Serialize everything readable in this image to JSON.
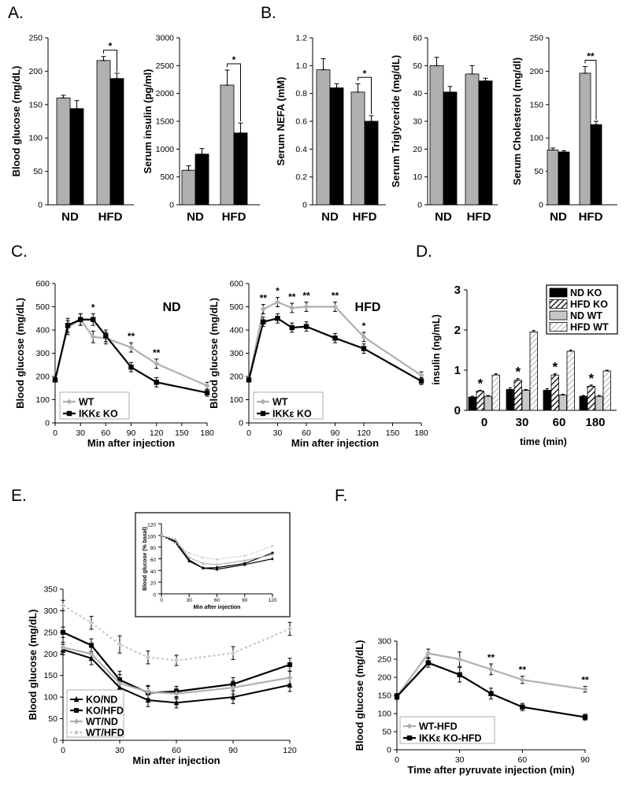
{
  "colors": {
    "wt": "#b0b0b0",
    "ko": "#000000",
    "wt_hfd_dotted": "#c4c4c4",
    "bar_edge": "#000000"
  },
  "panels": {
    "A": "A.",
    "B": "B.",
    "C": "C.",
    "D": "D.",
    "E": "E.",
    "F": "F."
  },
  "chart_data": [
    {
      "id": "A1",
      "type": "bar",
      "panel": "A",
      "categories": [
        "ND",
        "HFD"
      ],
      "series": [
        {
          "name": "WT",
          "values": [
            160,
            216
          ],
          "errors": [
            4,
            6
          ]
        },
        {
          "name": "IKKε KO",
          "values": [
            144,
            189
          ],
          "errors": [
            12,
            8
          ]
        }
      ],
      "ylabel": "Blood glucose (mg/dL)",
      "ylim": [
        0,
        250
      ],
      "yticks": [
        0,
        50,
        100,
        150,
        200,
        250
      ],
      "significance": [
        {
          "category": "HFD",
          "label": "*"
        }
      ]
    },
    {
      "id": "A2",
      "type": "bar",
      "panel": "A",
      "categories": [
        "ND",
        "HFD"
      ],
      "series": [
        {
          "name": "WT",
          "values": [
            620,
            2150
          ],
          "errors": [
            80,
            270
          ]
        },
        {
          "name": "IKKε KO",
          "values": [
            910,
            1290
          ],
          "errors": [
            100,
            180
          ]
        }
      ],
      "ylabel": "Serum insulin (pg/ml)",
      "ylim": [
        0,
        3000
      ],
      "yticks": [
        0,
        500,
        1000,
        1500,
        2000,
        2500,
        3000
      ],
      "significance": [
        {
          "category": "HFD",
          "label": "*"
        }
      ]
    },
    {
      "id": "B1",
      "type": "bar",
      "panel": "B",
      "categories": [
        "ND",
        "HFD"
      ],
      "series": [
        {
          "name": "WT",
          "values": [
            0.97,
            0.81
          ],
          "errors": [
            0.08,
            0.06
          ]
        },
        {
          "name": "IKKε KO",
          "values": [
            0.84,
            0.6
          ],
          "errors": [
            0.03,
            0.04
          ]
        }
      ],
      "ylabel": "Serum NEFA (mM)",
      "ylim": [
        0,
        1.2
      ],
      "yticks": [
        "0",
        "0.2",
        "0.4",
        "0.6",
        "0.8",
        "1.0",
        "1.2"
      ],
      "significance": [
        {
          "category": "HFD",
          "label": "*"
        }
      ]
    },
    {
      "id": "B2",
      "type": "bar",
      "panel": "B",
      "categories": [
        "ND",
        "HFD"
      ],
      "series": [
        {
          "name": "WT",
          "values": [
            50,
            47
          ],
          "errors": [
            3,
            3
          ]
        },
        {
          "name": "IKKε KO",
          "values": [
            40.5,
            44.5
          ],
          "errors": [
            2,
            1
          ]
        }
      ],
      "ylabel": "Serum Triglyceride (mg/dL)",
      "ylim": [
        0,
        60
      ],
      "yticks": [
        0,
        10,
        20,
        30,
        40,
        50,
        60
      ],
      "significance": []
    },
    {
      "id": "B3",
      "type": "bar",
      "panel": "B",
      "categories": [
        "ND",
        "HFD"
      ],
      "series": [
        {
          "name": "WT",
          "values": [
            82,
            197
          ],
          "errors": [
            3,
            10
          ]
        },
        {
          "name": "IKKε KO",
          "values": [
            79,
            120
          ],
          "errors": [
            2,
            5
          ]
        }
      ],
      "ylabel": "Serum Cholesterol (mg/dl)",
      "ylim": [
        0,
        250
      ],
      "yticks": [
        0,
        50,
        100,
        150,
        200,
        250
      ],
      "significance": [
        {
          "category": "HFD",
          "label": "**"
        }
      ]
    },
    {
      "id": "C1",
      "type": "line",
      "panel": "C",
      "title": "ND",
      "x": [
        0,
        15,
        30,
        45,
        60,
        90,
        120,
        180
      ],
      "series": [
        {
          "name": "WT",
          "values": [
            185,
            410,
            445,
            370,
            365,
            325,
            255,
            160
          ]
        },
        {
          "name": "IKKε KO",
          "values": [
            185,
            420,
            445,
            445,
            375,
            240,
            175,
            130
          ]
        }
      ],
      "errors": [
        8,
        30,
        25,
        25,
        25,
        20,
        20,
        15
      ],
      "xlabel": "Min after injection",
      "ylabel": "Blood glucose (mg/dL)",
      "xlim": [
        0,
        180
      ],
      "ylim": [
        0,
        600
      ],
      "xticks": [
        0,
        30,
        60,
        90,
        120,
        150,
        180
      ],
      "yticks": [
        0,
        100,
        200,
        300,
        400,
        500,
        600
      ],
      "significance": [
        {
          "x": 45,
          "label": "*"
        },
        {
          "x": 90,
          "label": "**"
        },
        {
          "x": 120,
          "label": "**"
        }
      ],
      "legend": [
        "WT",
        "IKKε KO"
      ]
    },
    {
      "id": "C2",
      "type": "line",
      "panel": "C",
      "title": "HFD",
      "x": [
        0,
        15,
        30,
        45,
        60,
        90,
        120,
        180
      ],
      "series": [
        {
          "name": "WT",
          "values": [
            185,
            490,
            520,
            495,
            500,
            500,
            370,
            205
          ]
        },
        {
          "name": "IKKε KO",
          "values": [
            185,
            435,
            450,
            410,
            415,
            365,
            320,
            180
          ]
        }
      ],
      "errors": [
        8,
        20,
        20,
        20,
        20,
        20,
        20,
        15
      ],
      "xlabel": "Min after injection",
      "ylabel": "Blood glucose (mg/dL)",
      "xlim": [
        0,
        180
      ],
      "ylim": [
        0,
        600
      ],
      "xticks": [
        0,
        30,
        60,
        90,
        120,
        150,
        180
      ],
      "yticks": [
        0,
        100,
        200,
        300,
        400,
        500,
        600
      ],
      "significance": [
        {
          "x": 15,
          "label": "**"
        },
        {
          "x": 30,
          "label": "*"
        },
        {
          "x": 45,
          "label": "**"
        },
        {
          "x": 60,
          "label": "**"
        },
        {
          "x": 90,
          "label": "**"
        },
        {
          "x": 120,
          "label": "*"
        }
      ],
      "legend": [
        "WT",
        "IKKε KO"
      ]
    },
    {
      "id": "D",
      "type": "bar",
      "panel": "D",
      "categories": [
        "0",
        "30",
        "60",
        "180"
      ],
      "series": [
        {
          "name": "ND KO",
          "values": [
            0.33,
            0.52,
            0.5,
            0.35
          ],
          "errors": [
            0.02,
            0.04,
            0.04,
            0.02
          ]
        },
        {
          "name": "HFD KO",
          "values": [
            0.48,
            0.75,
            0.88,
            0.6
          ],
          "errors": [
            0.02,
            0.04,
            0.03,
            0.03
          ]
        },
        {
          "name": "ND WT",
          "values": [
            0.35,
            0.5,
            0.38,
            0.35
          ],
          "errors": [
            0.02,
            0.02,
            0.02,
            0.02
          ]
        },
        {
          "name": "HFD WT",
          "values": [
            0.88,
            1.95,
            1.47,
            0.98
          ],
          "errors": [
            0.03,
            0.04,
            0.03,
            0.02
          ]
        }
      ],
      "xlabel": "time (min)",
      "ylabel": "insulin (ng/mL)",
      "ylim": [
        0,
        3
      ],
      "yticks": [
        0,
        1,
        2,
        3
      ],
      "significance": [
        {
          "category": "0",
          "label": "*"
        },
        {
          "category": "30",
          "label": "*"
        },
        {
          "category": "60",
          "label": "*"
        },
        {
          "category": "180",
          "label": "*"
        }
      ]
    },
    {
      "id": "E",
      "type": "line",
      "panel": "E",
      "x": [
        0,
        15,
        30,
        45,
        60,
        90,
        120
      ],
      "series": [
        {
          "name": "KO/ND",
          "values": [
            210,
            190,
            122,
            93,
            87,
            100,
            128
          ]
        },
        {
          "name": "KO/HFD",
          "values": [
            250,
            220,
            140,
            110,
            113,
            130,
            175
          ]
        },
        {
          "name": "WT/ND",
          "values": [
            215,
            200,
            132,
            112,
            108,
            122,
            145
          ]
        },
        {
          "name": "WT/HFD",
          "values": [
            312,
            272,
            222,
            192,
            185,
            202,
            258
          ]
        }
      ],
      "errors": [
        12,
        15,
        20,
        15,
        12,
        15,
        15
      ],
      "xlabel": "Min after injection",
      "ylabel": "Blood glucose (mg/dL)",
      "xlim": [
        0,
        120
      ],
      "ylim": [
        0,
        350
      ],
      "xticks": [
        0,
        30,
        60,
        90,
        120
      ],
      "yticks": [
        0,
        50,
        100,
        150,
        200,
        250,
        300,
        350
      ],
      "legend": [
        "KO/ND",
        "KO/HFD",
        "WT/ND",
        "WT/HFD"
      ]
    },
    {
      "id": "E_inset",
      "type": "line",
      "panel": "E",
      "x": [
        0,
        15,
        30,
        45,
        60,
        90,
        120
      ],
      "series": [
        {
          "name": "KO/ND",
          "values": [
            100,
            90,
            58,
            44,
            42,
            50,
            60
          ]
        },
        {
          "name": "KO/HFD",
          "values": [
            100,
            88,
            56,
            44,
            45,
            52,
            70
          ]
        },
        {
          "name": "WT/ND",
          "values": [
            100,
            93,
            62,
            52,
            50,
            57,
            67
          ]
        },
        {
          "name": "WT/HFD",
          "values": [
            100,
            87,
            70,
            62,
            59,
            65,
            82
          ]
        }
      ],
      "xlabel": "Min after injection",
      "ylabel": "Blood glucose (% basal)",
      "xlim": [
        0,
        120
      ],
      "ylim": [
        0,
        120
      ],
      "xticks": [
        0,
        30,
        60,
        90,
        120
      ],
      "yticks": [
        0,
        20,
        40,
        60,
        80,
        100,
        120
      ]
    },
    {
      "id": "F",
      "type": "line",
      "panel": "F",
      "x": [
        0,
        15,
        30,
        45,
        60,
        90
      ],
      "series": [
        {
          "name": "WT-HFD",
          "values": [
            147,
            266,
            250,
            222,
            193,
            167
          ]
        },
        {
          "name": "IKKε KO-HFD",
          "values": [
            147,
            240,
            207,
            155,
            118,
            90
          ]
        }
      ],
      "errors": [
        8,
        12,
        20,
        15,
        10,
        8
      ],
      "xlabel": "Time after pyruvate injection (min)",
      "ylabel": "Blood glucose (mg/dL)",
      "xlim": [
        0,
        90
      ],
      "ylim": [
        0,
        300
      ],
      "xticks": [
        0,
        30,
        60,
        90
      ],
      "yticks": [
        0,
        50,
        100,
        150,
        200,
        250,
        300
      ],
      "significance": [
        {
          "x": 45,
          "label": "**"
        },
        {
          "x": 60,
          "label": "**"
        },
        {
          "x": 90,
          "label": "**"
        }
      ],
      "legend": [
        "WT-HFD",
        "IKKε KO-HFD"
      ]
    }
  ]
}
